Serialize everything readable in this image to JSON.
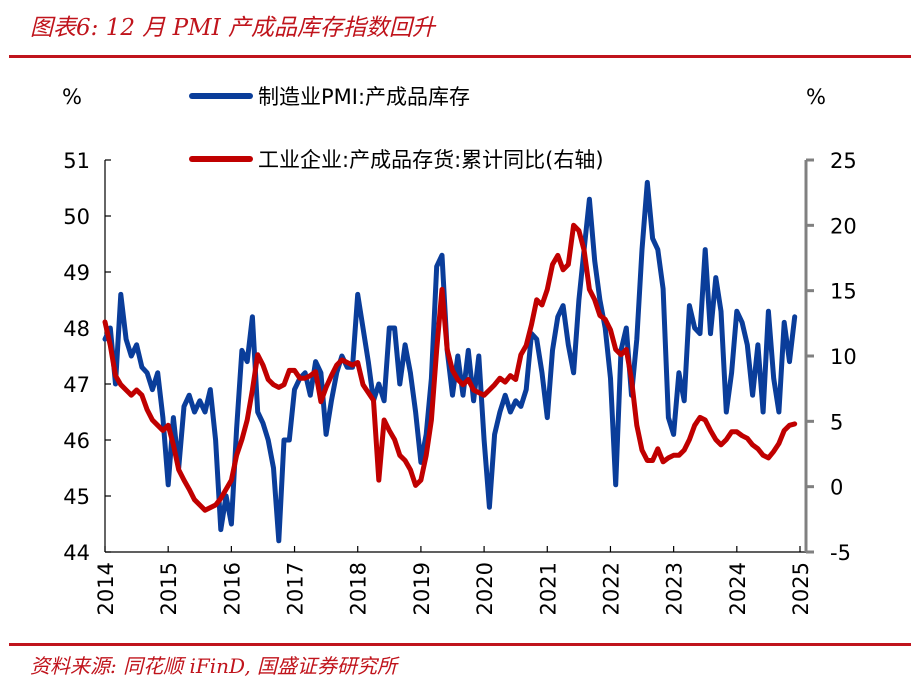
{
  "header": {
    "title": "图表6:  12 月 PMI 产成品库存指数回升"
  },
  "footer": {
    "source": "资料来源:  同花顺 iFinD, 国盛证券研究所"
  },
  "colors": {
    "accent": "#c0141c",
    "pmi_series": "#0a3d9a",
    "inventory_series": "#c00000",
    "right_axis": "#808080"
  },
  "chart_data": {
    "type": "line",
    "title": "12 月 PMI 产成品库存指数回升",
    "xlabel": "",
    "left_unit": "%",
    "right_unit": "%",
    "x_start": "2014-01",
    "x_end": "2024-12",
    "x_ticks": [
      "2014",
      "2015",
      "2016",
      "2017",
      "2018",
      "2019",
      "2020",
      "2021",
      "2022",
      "2023",
      "2024",
      "2025"
    ],
    "y_left": {
      "ylim": [
        44,
        51
      ],
      "ticks": [
        "44",
        "45",
        "46",
        "47",
        "48",
        "49",
        "50",
        "51"
      ]
    },
    "y_right": {
      "ylim": [
        -5,
        25
      ],
      "ticks": [
        "-5",
        "0",
        "5",
        "10",
        "15",
        "20",
        "25"
      ]
    },
    "legend_position": "top-center",
    "series": [
      {
        "name": "制造业PMI:产成品库存",
        "axis": "left",
        "values": [
          47.8,
          48.0,
          47.0,
          48.6,
          47.8,
          47.5,
          47.7,
          47.3,
          47.2,
          46.9,
          47.2,
          46.4,
          45.2,
          46.4,
          45.5,
          46.6,
          46.8,
          46.5,
          46.7,
          46.5,
          46.9,
          46.0,
          44.4,
          45.0,
          44.5,
          46.2,
          47.6,
          47.4,
          48.2,
          46.5,
          46.3,
          46.0,
          45.5,
          44.2,
          46.0,
          46.0,
          46.9,
          47.1,
          47.2,
          46.8,
          47.4,
          47.2,
          46.1,
          46.7,
          47.2,
          47.5,
          47.3,
          47.3,
          48.6,
          48.0,
          47.4,
          46.7,
          47.0,
          46.7,
          48.0,
          48.0,
          47.0,
          47.7,
          47.2,
          46.5,
          45.6,
          46.1,
          47.1,
          49.1,
          49.3,
          47.6,
          46.8,
          47.5,
          46.8,
          47.6,
          46.7,
          47.5,
          46.0,
          44.8,
          46.1,
          46.5,
          46.8,
          46.5,
          46.7,
          46.6,
          46.9,
          47.9,
          47.8,
          47.2,
          46.4,
          47.6,
          48.2,
          48.4,
          47.7,
          47.2,
          48.5,
          49.4,
          50.3,
          49.2,
          48.5,
          48.0,
          47.1,
          45.2,
          47.6,
          48.0,
          46.8,
          47.8,
          49.4,
          50.6,
          49.6,
          49.4,
          48.7,
          46.4,
          46.1,
          47.2,
          46.7,
          48.4,
          48.0,
          47.9,
          49.4,
          47.9,
          48.9,
          48.3,
          46.5,
          47.2,
          48.3,
          48.1,
          47.7,
          46.8,
          47.7,
          46.5,
          48.3,
          47.1,
          46.5,
          48.1,
          47.4,
          48.2
        ]
      },
      {
        "name": "工业企业:产成品存货:累计同比(右轴)",
        "axis": "right",
        "values": [
          12.6,
          10.8,
          8.5,
          7.8,
          7.4,
          7.0,
          7.4,
          7.0,
          5.9,
          5.1,
          4.7,
          4.3,
          4.7,
          3.2,
          1.3,
          0.5,
          -0.2,
          -1.0,
          -1.4,
          -1.8,
          -1.6,
          -1.4,
          -0.9,
          -0.2,
          0.5,
          2.4,
          3.6,
          5.1,
          7.4,
          10.1,
          9.3,
          8.2,
          7.8,
          7.6,
          7.8,
          8.9,
          8.9,
          8.3,
          8.3,
          8.5,
          8.8,
          6.5,
          7.6,
          8.5,
          9.3,
          9.7,
          9.5,
          9.3,
          9.5,
          7.8,
          7.2,
          6.6,
          0.5,
          5.1,
          4.3,
          3.6,
          2.4,
          2.0,
          1.3,
          0.1,
          0.5,
          2.4,
          5.1,
          10.5,
          15.1,
          10.5,
          8.9,
          8.2,
          7.8,
          8.2,
          7.4,
          7.2,
          7.0,
          7.4,
          7.8,
          8.3,
          8.0,
          8.5,
          8.2,
          10.1,
          10.8,
          12.4,
          14.3,
          13.9,
          15.1,
          17.0,
          17.7,
          16.6,
          17.0,
          20.0,
          19.6,
          18.1,
          15.1,
          14.3,
          13.1,
          12.8,
          12.0,
          10.5,
          10.1,
          10.5,
          8.2,
          4.7,
          2.8,
          2.0,
          2.0,
          2.9,
          1.9,
          2.2,
          2.4,
          2.4,
          2.8,
          3.6,
          4.7,
          5.3,
          5.1,
          4.3,
          3.6,
          3.2,
          3.6,
          4.2,
          4.2,
          3.9,
          3.7,
          3.2,
          2.9,
          2.4,
          2.2,
          2.7,
          3.3,
          4.3,
          4.7,
          4.8
        ]
      }
    ]
  }
}
